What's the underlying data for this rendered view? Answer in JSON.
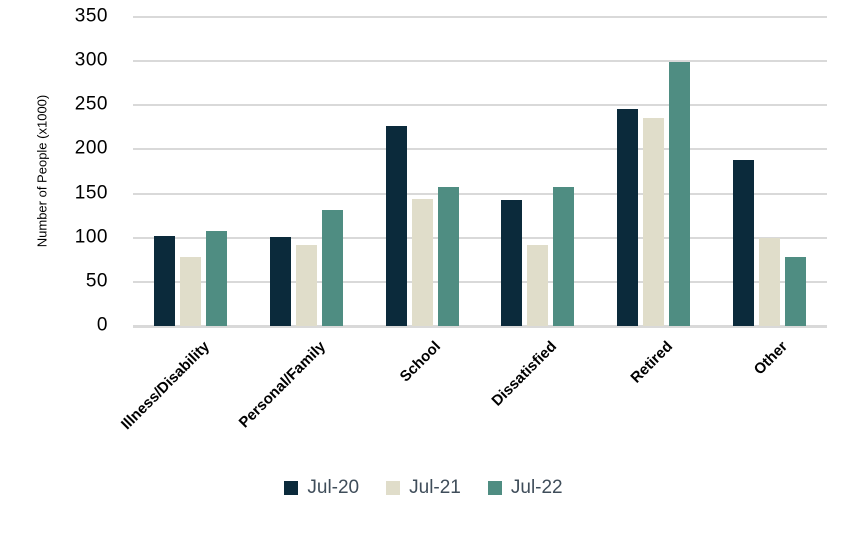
{
  "chart_data": {
    "type": "bar",
    "title": "",
    "xlabel": "",
    "ylabel": "Number of People (x1000)",
    "categories": [
      "Illness/Disability",
      "Personal/Family",
      "School",
      "Dissatisfied",
      "Retired",
      "Other"
    ],
    "series": [
      {
        "name": "Jul-20",
        "color": "#0b2a3b",
        "values": [
          102,
          101,
          227,
          143,
          246,
          188
        ]
      },
      {
        "name": "Jul-21",
        "color": "#e0ddca",
        "values": [
          78,
          92,
          144,
          92,
          236,
          100
        ]
      },
      {
        "name": "Jul-22",
        "color": "#4f8d82",
        "values": [
          108,
          131,
          157,
          157,
          299,
          78
        ]
      }
    ],
    "ylim": [
      0,
      350
    ],
    "ytick_step": 50,
    "ytick_labels": [
      "0",
      "50",
      "100",
      "150",
      "200",
      "250",
      "300",
      "350"
    ],
    "grid": "horizontal",
    "gridline_color": "#d9d9d9",
    "axis_text_color": "#000000",
    "legend_position": "bottom",
    "legend_text_color": "#3f4d5a"
  }
}
